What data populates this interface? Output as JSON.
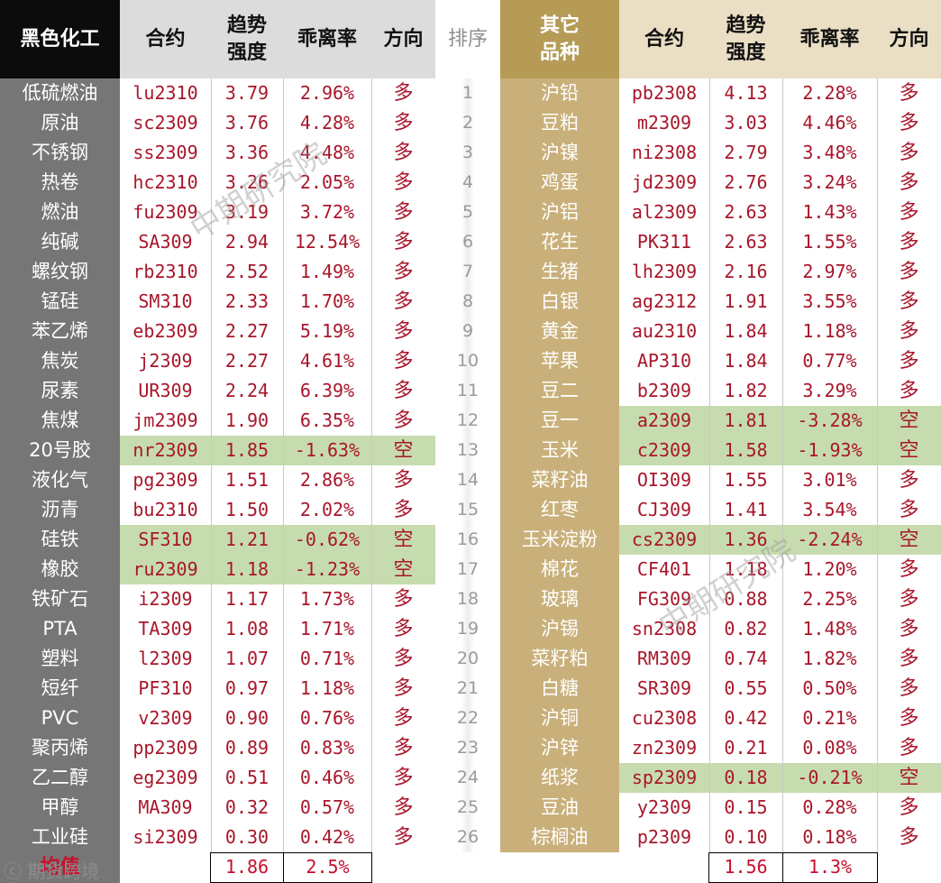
{
  "headers": {
    "left_group": "黑色化工",
    "contract": "合约",
    "trend": "趋势\n强度",
    "deviation": "乖离率",
    "direction": "方向",
    "rank": "排序",
    "right_group": "其它\n品种"
  },
  "left_rows": [
    {
      "name": "低硫燃油",
      "code": "lu2310",
      "trend": "3.79",
      "dev": "2.96%",
      "dir": "多"
    },
    {
      "name": "原油",
      "code": "sc2309",
      "trend": "3.76",
      "dev": "4.28%",
      "dir": "多"
    },
    {
      "name": "不锈钢",
      "code": "ss2309",
      "trend": "3.36",
      "dev": "4.48%",
      "dir": "多"
    },
    {
      "name": "热卷",
      "code": "hc2310",
      "trend": "3.26",
      "dev": "2.05%",
      "dir": "多"
    },
    {
      "name": "燃油",
      "code": "fu2309",
      "trend": "3.19",
      "dev": "3.72%",
      "dir": "多"
    },
    {
      "name": "纯碱",
      "code": "SA309",
      "trend": "2.94",
      "dev": "12.54%",
      "dir": "多"
    },
    {
      "name": "螺纹钢",
      "code": "rb2310",
      "trend": "2.52",
      "dev": "1.49%",
      "dir": "多"
    },
    {
      "name": "锰硅",
      "code": "SM310",
      "trend": "2.33",
      "dev": "1.70%",
      "dir": "多"
    },
    {
      "name": "苯乙烯",
      "code": "eb2309",
      "trend": "2.27",
      "dev": "5.19%",
      "dir": "多"
    },
    {
      "name": "焦炭",
      "code": "j2309",
      "trend": "2.27",
      "dev": "4.61%",
      "dir": "多"
    },
    {
      "name": "尿素",
      "code": "UR309",
      "trend": "2.24",
      "dev": "6.39%",
      "dir": "多"
    },
    {
      "name": "焦煤",
      "code": "jm2309",
      "trend": "1.90",
      "dev": "6.35%",
      "dir": "多"
    },
    {
      "name": "20号胶",
      "code": "nr2309",
      "trend": "1.85",
      "dev": "-1.63%",
      "dir": "空"
    },
    {
      "name": "液化气",
      "code": "pg2309",
      "trend": "1.51",
      "dev": "2.86%",
      "dir": "多"
    },
    {
      "name": "沥青",
      "code": "bu2310",
      "trend": "1.50",
      "dev": "2.02%",
      "dir": "多"
    },
    {
      "name": "硅铁",
      "code": "SF310",
      "trend": "1.21",
      "dev": "-0.62%",
      "dir": "空"
    },
    {
      "name": "橡胶",
      "code": "ru2309",
      "trend": "1.18",
      "dev": "-1.23%",
      "dir": "空"
    },
    {
      "name": "铁矿石",
      "code": "i2309",
      "trend": "1.17",
      "dev": "1.73%",
      "dir": "多"
    },
    {
      "name": "PTA",
      "code": "TA309",
      "trend": "1.08",
      "dev": "1.71%",
      "dir": "多"
    },
    {
      "name": "塑料",
      "code": "l2309",
      "trend": "1.07",
      "dev": "0.71%",
      "dir": "多"
    },
    {
      "name": "短纤",
      "code": "PF310",
      "trend": "0.97",
      "dev": "1.18%",
      "dir": "多"
    },
    {
      "name": "PVC",
      "code": "v2309",
      "trend": "0.90",
      "dev": "0.76%",
      "dir": "多"
    },
    {
      "name": "聚丙烯",
      "code": "pp2309",
      "trend": "0.89",
      "dev": "0.83%",
      "dir": "多"
    },
    {
      "name": "乙二醇",
      "code": "eg2309",
      "trend": "0.51",
      "dev": "0.46%",
      "dir": "多"
    },
    {
      "name": "甲醇",
      "code": "MA309",
      "trend": "0.32",
      "dev": "0.57%",
      "dir": "多"
    },
    {
      "name": "工业硅",
      "code": "si2309",
      "trend": "0.30",
      "dev": "0.42%",
      "dir": "多"
    }
  ],
  "right_rows": [
    {
      "rank": "1",
      "name": "沪铅",
      "code": "pb2308",
      "trend": "4.13",
      "dev": "2.28%",
      "dir": "多"
    },
    {
      "rank": "2",
      "name": "豆粕",
      "code": "m2309",
      "trend": "3.03",
      "dev": "4.46%",
      "dir": "多"
    },
    {
      "rank": "3",
      "name": "沪镍",
      "code": "ni2308",
      "trend": "2.79",
      "dev": "3.48%",
      "dir": "多"
    },
    {
      "rank": "4",
      "name": "鸡蛋",
      "code": "jd2309",
      "trend": "2.76",
      "dev": "3.24%",
      "dir": "多"
    },
    {
      "rank": "5",
      "name": "沪铝",
      "code": "al2309",
      "trend": "2.63",
      "dev": "1.43%",
      "dir": "多"
    },
    {
      "rank": "6",
      "name": "花生",
      "code": "PK311",
      "trend": "2.63",
      "dev": "1.55%",
      "dir": "多"
    },
    {
      "rank": "7",
      "name": "生猪",
      "code": "lh2309",
      "trend": "2.16",
      "dev": "2.97%",
      "dir": "多"
    },
    {
      "rank": "8",
      "name": "白银",
      "code": "ag2312",
      "trend": "1.91",
      "dev": "3.55%",
      "dir": "多"
    },
    {
      "rank": "9",
      "name": "黄金",
      "code": "au2310",
      "trend": "1.84",
      "dev": "1.18%",
      "dir": "多"
    },
    {
      "rank": "10",
      "name": "苹果",
      "code": "AP310",
      "trend": "1.84",
      "dev": "0.77%",
      "dir": "多"
    },
    {
      "rank": "11",
      "name": "豆二",
      "code": "b2309",
      "trend": "1.82",
      "dev": "3.29%",
      "dir": "多"
    },
    {
      "rank": "12",
      "name": "豆一",
      "code": "a2309",
      "trend": "1.81",
      "dev": "-3.28%",
      "dir": "空"
    },
    {
      "rank": "13",
      "name": "玉米",
      "code": "c2309",
      "trend": "1.58",
      "dev": "-1.93%",
      "dir": "空"
    },
    {
      "rank": "14",
      "name": "菜籽油",
      "code": "OI309",
      "trend": "1.55",
      "dev": "3.01%",
      "dir": "多"
    },
    {
      "rank": "15",
      "name": "红枣",
      "code": "CJ309",
      "trend": "1.41",
      "dev": "3.54%",
      "dir": "多"
    },
    {
      "rank": "16",
      "name": "玉米淀粉",
      "code": "cs2309",
      "trend": "1.36",
      "dev": "-2.24%",
      "dir": "空"
    },
    {
      "rank": "17",
      "name": "棉花",
      "code": "CF401",
      "trend": "1.18",
      "dev": "1.20%",
      "dir": "多"
    },
    {
      "rank": "18",
      "name": "玻璃",
      "code": "FG309",
      "trend": "0.88",
      "dev": "2.25%",
      "dir": "多"
    },
    {
      "rank": "19",
      "name": "沪锡",
      "code": "sn2308",
      "trend": "0.82",
      "dev": "1.48%",
      "dir": "多"
    },
    {
      "rank": "20",
      "name": "菜籽粕",
      "code": "RM309",
      "trend": "0.74",
      "dev": "1.82%",
      "dir": "多"
    },
    {
      "rank": "21",
      "name": "白糖",
      "code": "SR309",
      "trend": "0.55",
      "dev": "0.50%",
      "dir": "多"
    },
    {
      "rank": "22",
      "name": "沪铜",
      "code": "cu2308",
      "trend": "0.42",
      "dev": "0.21%",
      "dir": "多"
    },
    {
      "rank": "23",
      "name": "沪锌",
      "code": "zn2309",
      "trend": "0.21",
      "dev": "0.08%",
      "dir": "多"
    },
    {
      "rank": "24",
      "name": "纸浆",
      "code": "sp2309",
      "trend": "0.18",
      "dev": "-0.21%",
      "dir": "空"
    },
    {
      "rank": "25",
      "name": "豆油",
      "code": "y2309",
      "trend": "0.15",
      "dev": "0.28%",
      "dir": "多"
    },
    {
      "rank": "26",
      "name": "棕榈油",
      "code": "p2309",
      "trend": "0.10",
      "dev": "0.18%",
      "dir": "多"
    }
  ],
  "footer": {
    "label": "均值",
    "left_trend_avg": "1.86",
    "left_dev_avg": "2.5%",
    "right_trend_avg": "1.56",
    "right_dev_avg": "1.3%"
  },
  "watermark": "中期研究院",
  "logo_text": "期货跨境",
  "colors": {
    "value_red": "#a8162a",
    "highlight_green": "#c6dcae",
    "gold_header": "#b59b55",
    "name_column_gray": "#767676"
  }
}
